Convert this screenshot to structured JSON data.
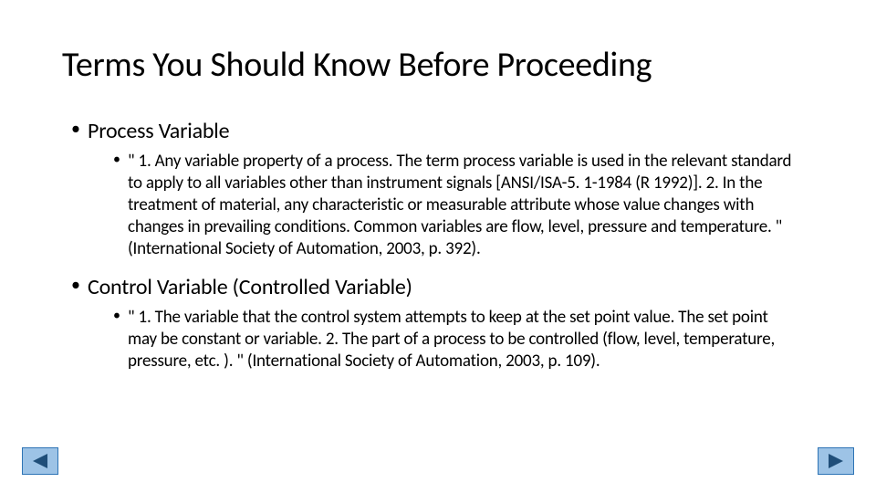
{
  "slide": {
    "title": "Terms You Should Know Before Proceeding",
    "items": [
      {
        "heading": "Process Variable",
        "body": "\" 1. Any variable property of a process. The term process variable is used in the relevant standard to apply to all variables other than instrument signals [ANSI/ISA-5. 1-1984 (R 1992)]. 2. In the treatment of material, any characteristic or measurable attribute whose value changes with changes in prevailing conditions. Common variables are flow, level, pressure and temperature. \" (International Society of Automation, 2003, p. 392)."
      },
      {
        "heading": "Control Variable (Controlled Variable)",
        "body": "\" 1. The variable that the control system attempts to keep at the set point value. The set point may be constant or variable. 2. The part of a process to be controlled (flow, level, temperature, pressure, etc. ). \" (International Society of Automation, 2003, p. 109)."
      }
    ]
  },
  "nav": {
    "prev_label": "previous",
    "next_label": "next"
  },
  "style": {
    "background_color": "#ffffff",
    "text_color": "#000000",
    "title_fontsize": 38,
    "l1_fontsize": 24,
    "l2_fontsize": 19,
    "nav_fill": "#9dc3e6",
    "nav_border": "#2e74b5",
    "nav_arrow_color": "#1f4e79",
    "nav_width": 40,
    "nav_height": 30,
    "slide_width": 960,
    "slide_height": 540
  }
}
